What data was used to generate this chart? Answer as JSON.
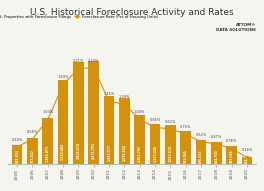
{
  "title": "U.S. Historical Foreclosure Activity and Rates",
  "years": [
    2005,
    2006,
    2007,
    2008,
    2009,
    2010,
    2011,
    2012,
    2013,
    2014,
    2015,
    2016,
    2017,
    2018,
    2019,
    2020
  ],
  "filings": [
    533803,
    717522,
    1285873,
    2330483,
    2824674,
    2871791,
    1887777,
    1836634,
    1361795,
    1117426,
    1083572,
    933045,
    676535,
    624753,
    493066,
    214323
  ],
  "rates": [
    0.4,
    0.58,
    1.03,
    1.84,
    2.21,
    2.23,
    1.45,
    1.39,
    1.04,
    0.85,
    0.82,
    0.7,
    0.52,
    0.47,
    0.36,
    0.16
  ],
  "bar_color": "#D4920A",
  "line_color": "#D4920A",
  "background_color": "#f5f5f0",
  "text_color": "#333333",
  "title_fontsize": 6.5,
  "legend_bar_label": "U.S. Properties with Foreclosure Filings",
  "legend_line_label": "Foreclosure Rate (Pct of Housing Units)",
  "ylabel_left": "",
  "attom_logo_text": "ATTOM\nDATA SOLUTIONS"
}
